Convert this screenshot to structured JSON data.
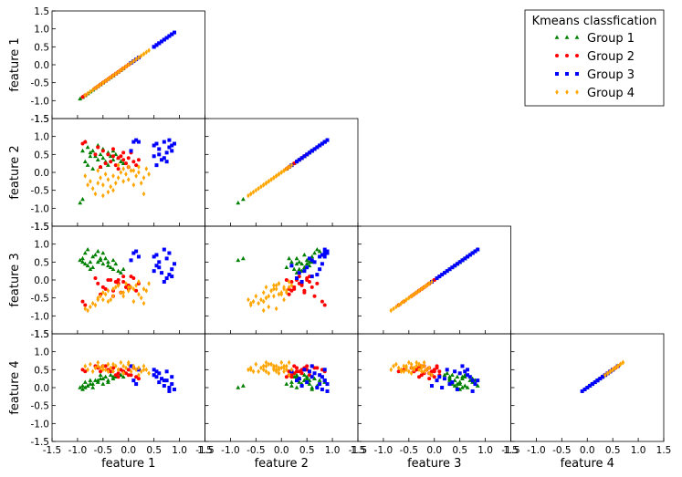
{
  "chart_data": {
    "type": "scatter",
    "title": "",
    "features": [
      "feature 1",
      "feature 2",
      "feature 3",
      "feature 4"
    ],
    "xlim": [
      -1.5,
      1.5
    ],
    "ylim": [
      -1.5,
      1.5
    ],
    "ticks": [
      "-1.5",
      "-1.0",
      "-0.5",
      "0.0",
      "0.5",
      "1.0",
      "1.5"
    ],
    "legend": {
      "title": "Kmeans classfication",
      "position": "top-right",
      "entries": [
        {
          "name": "Group 1",
          "color": "#008000",
          "marker": "triangle"
        },
        {
          "name": "Group 2",
          "color": "#ff0000",
          "marker": "circle"
        },
        {
          "name": "Group 3",
          "color": "#0000ff",
          "marker": "square"
        },
        {
          "name": "Group 4",
          "color": "#ffa500",
          "marker": "diamond"
        }
      ]
    },
    "series": [
      {
        "name": "Group 1",
        "color": "#008000",
        "marker": "triangle",
        "points": [
          [
            -0.95,
            -0.85,
            0.55,
            0.0
          ],
          [
            -0.9,
            -0.75,
            0.6,
            0.05
          ],
          [
            -0.85,
            0.85,
            0.75,
            0.15
          ],
          [
            -0.8,
            0.7,
            0.85,
            0.05
          ],
          [
            -0.75,
            0.55,
            0.5,
            0.1
          ],
          [
            -0.7,
            0.6,
            0.65,
            0.0
          ],
          [
            -0.65,
            0.45,
            0.7,
            0.2
          ],
          [
            -0.6,
            0.35,
            0.5,
            0.15
          ],
          [
            -0.55,
            0.5,
            0.55,
            0.25
          ],
          [
            -0.5,
            0.4,
            0.45,
            0.1
          ],
          [
            -0.45,
            0.3,
            0.6,
            0.3
          ],
          [
            -0.4,
            0.55,
            0.4,
            0.2
          ],
          [
            -0.35,
            0.45,
            0.35,
            0.35
          ],
          [
            -0.3,
            0.35,
            0.3,
            0.25
          ],
          [
            -0.25,
            0.5,
            0.45,
            0.3
          ],
          [
            -0.2,
            0.4,
            0.25,
            0.4
          ],
          [
            -0.15,
            0.3,
            0.2,
            0.35
          ],
          [
            -0.1,
            0.25,
            0.3,
            0.3
          ],
          [
            -0.8,
            0.2,
            0.4,
            0.05
          ],
          [
            -0.7,
            0.1,
            0.35,
            0.1
          ],
          [
            -0.6,
            0.75,
            0.8,
            0.2
          ],
          [
            -0.85,
            0.3,
            0.45,
            0.0
          ],
          [
            -0.5,
            0.65,
            0.75,
            0.25
          ],
          [
            -0.4,
            0.2,
            0.5,
            0.15
          ],
          [
            -0.75,
            0.45,
            0.3,
            0.2
          ],
          [
            -0.9,
            0.6,
            0.5,
            -0.05
          ],
          [
            -0.55,
            0.15,
            0.6,
            0.35
          ],
          [
            -0.3,
            0.6,
            0.55,
            0.3
          ]
        ]
      },
      {
        "name": "Group 2",
        "color": "#ff0000",
        "marker": "circle",
        "points": [
          [
            -0.9,
            0.8,
            -0.6,
            0.5
          ],
          [
            -0.85,
            0.85,
            -0.7,
            0.45
          ],
          [
            -0.6,
            0.7,
            -0.1,
            0.55
          ],
          [
            -0.5,
            0.6,
            -0.2,
            0.6
          ],
          [
            -0.4,
            0.5,
            0.0,
            0.5
          ],
          [
            -0.3,
            0.45,
            -0.3,
            0.55
          ],
          [
            -0.2,
            0.4,
            -0.1,
            0.4
          ],
          [
            -0.1,
            0.35,
            0.1,
            0.45
          ],
          [
            0.0,
            0.4,
            -0.15,
            0.5
          ],
          [
            0.1,
            0.3,
            0.05,
            0.55
          ],
          [
            -0.45,
            0.25,
            -0.25,
            0.6
          ],
          [
            -0.35,
            0.3,
            0.0,
            0.45
          ],
          [
            -0.25,
            0.2,
            -0.05,
            0.35
          ],
          [
            -0.15,
            0.45,
            -0.35,
            0.5
          ],
          [
            -0.05,
            0.25,
            -0.2,
            0.4
          ],
          [
            0.05,
            0.55,
            0.1,
            0.35
          ],
          [
            -0.55,
            0.15,
            -0.4,
            0.45
          ],
          [
            0.15,
            0.2,
            -0.3,
            0.3
          ],
          [
            -0.65,
            0.5,
            0.05,
            0.6
          ],
          [
            0.2,
            0.35,
            -0.1,
            0.25
          ],
          [
            -0.3,
            0.65,
            -0.45,
            0.55
          ],
          [
            -0.2,
            0.1,
            0.0,
            0.3
          ],
          [
            0.0,
            0.15,
            -0.25,
            0.35
          ],
          [
            -0.1,
            0.55,
            -0.05,
            0.45
          ]
        ]
      },
      {
        "name": "Group 3",
        "color": "#0000ff",
        "marker": "square",
        "points": [
          [
            0.05,
            0.6,
            0.55,
            0.6
          ],
          [
            0.1,
            0.85,
            0.75,
            0.2
          ],
          [
            0.15,
            0.9,
            0.8,
            0.1
          ],
          [
            0.5,
            0.75,
            0.65,
            0.35
          ],
          [
            0.55,
            0.8,
            0.7,
            0.3
          ],
          [
            0.6,
            0.65,
            0.5,
            0.4
          ],
          [
            0.7,
            0.85,
            0.85,
            0.2
          ],
          [
            0.75,
            0.55,
            0.6,
            0.45
          ],
          [
            0.8,
            0.7,
            0.15,
            0.0
          ],
          [
            0.85,
            0.75,
            0.3,
            0.1
          ],
          [
            0.9,
            0.8,
            0.45,
            -0.05
          ],
          [
            0.5,
            0.45,
            0.25,
            0.5
          ],
          [
            0.6,
            0.5,
            0.35,
            0.15
          ],
          [
            0.65,
            0.35,
            0.2,
            0.25
          ],
          [
            0.7,
            0.4,
            -0.05,
            0.05
          ],
          [
            0.85,
            0.6,
            0.1,
            0.3
          ],
          [
            0.2,
            0.85,
            0.65,
            0.5
          ],
          [
            0.75,
            0.3,
            0.05,
            0.2
          ],
          [
            0.55,
            0.2,
            0.4,
            0.45
          ],
          [
            0.8,
            0.9,
            0.75,
            -0.1
          ]
        ]
      },
      {
        "name": "Group 4",
        "color": "#ffa500",
        "marker": "diamond",
        "points": [
          [
            -0.85,
            -0.1,
            -0.8,
            0.6
          ],
          [
            -0.8,
            -0.35,
            -0.85,
            0.5
          ],
          [
            -0.75,
            -0.25,
            -0.75,
            0.65
          ],
          [
            -0.7,
            -0.45,
            -0.65,
            0.45
          ],
          [
            -0.6,
            -0.3,
            -0.5,
            0.7
          ],
          [
            -0.55,
            -0.15,
            -0.45,
            0.55
          ],
          [
            -0.5,
            -0.35,
            -0.35,
            0.6
          ],
          [
            -0.45,
            -0.05,
            -0.4,
            0.5
          ],
          [
            -0.4,
            -0.2,
            -0.3,
            0.65
          ],
          [
            -0.35,
            -0.4,
            -0.55,
            0.55
          ],
          [
            -0.3,
            -0.1,
            -0.25,
            0.45
          ],
          [
            -0.25,
            -0.3,
            -0.2,
            0.6
          ],
          [
            -0.2,
            -0.15,
            -0.15,
            0.5
          ],
          [
            -0.15,
            0.0,
            -0.35,
            0.7
          ],
          [
            -0.1,
            -0.25,
            -0.45,
            0.4
          ],
          [
            -0.05,
            -0.05,
            -0.1,
            0.55
          ],
          [
            0.0,
            -0.2,
            -0.3,
            0.65
          ],
          [
            0.05,
            0.05,
            -0.2,
            0.45
          ],
          [
            0.1,
            -0.35,
            -0.6,
            0.6
          ],
          [
            0.15,
            -0.1,
            -0.15,
            0.5
          ],
          [
            0.2,
            0.0,
            -0.4,
            0.55
          ],
          [
            0.25,
            -0.3,
            -0.5,
            0.45
          ],
          [
            0.3,
            -0.15,
            -0.25,
            0.6
          ],
          [
            0.35,
            0.1,
            -0.3,
            0.5
          ],
          [
            0.4,
            -0.05,
            -0.1,
            0.4
          ],
          [
            -0.65,
            -0.6,
            -0.7,
            0.55
          ],
          [
            -0.5,
            -0.65,
            -0.55,
            0.5
          ],
          [
            -0.3,
            -0.5,
            -0.45,
            0.65
          ],
          [
            -0.1,
            0.1,
            -0.35,
            0.6
          ],
          [
            0.0,
            0.15,
            -0.2,
            0.7
          ],
          [
            0.1,
            0.05,
            -0.25,
            0.55
          ],
          [
            -0.4,
            -0.55,
            -0.6,
            0.45
          ],
          [
            -0.2,
            0.2,
            -0.15,
            0.5
          ],
          [
            0.2,
            0.15,
            -0.05,
            0.35
          ],
          [
            -0.6,
            0.05,
            -0.55,
            0.6
          ],
          [
            0.3,
            -0.6,
            -0.65,
            0.5
          ]
        ]
      }
    ]
  }
}
